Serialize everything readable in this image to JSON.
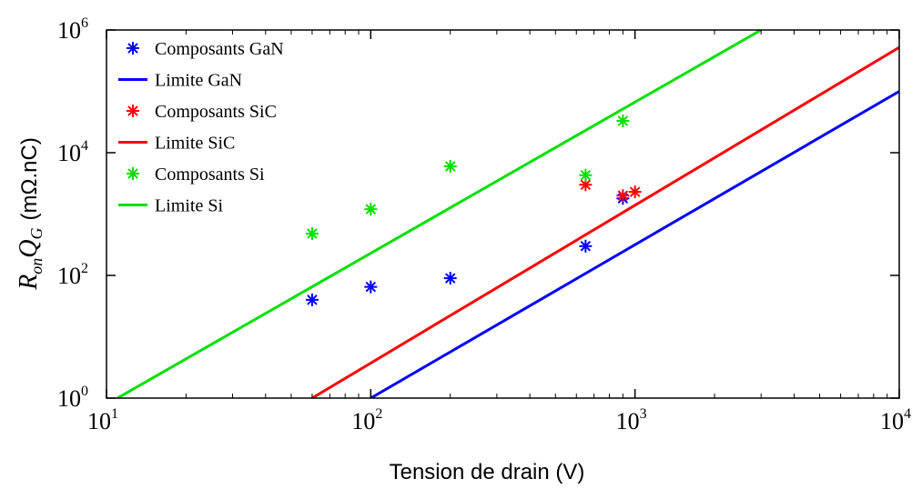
{
  "chart_data": {
    "type": "scatter",
    "title": "",
    "xlabel": "Tension de drain (V)",
    "ylabel": {
      "symbol_r": "R",
      "symbol_r_sub": "on",
      "symbol_q": "Q",
      "symbol_q_sub": "G",
      "unit": "(mΩ.nC)"
    },
    "x_scale": "log",
    "y_scale": "log",
    "xlim": [
      10,
      10000
    ],
    "ylim": [
      1,
      1000000
    ],
    "x_ticks": [
      {
        "value": 10,
        "base": "10",
        "exp": "1"
      },
      {
        "value": 100,
        "base": "10",
        "exp": "2"
      },
      {
        "value": 1000,
        "base": "10",
        "exp": "3"
      },
      {
        "value": 10000,
        "base": "10",
        "exp": "4"
      }
    ],
    "y_ticks": [
      {
        "value": 1,
        "base": "10",
        "exp": "0"
      },
      {
        "value": 100,
        "base": "10",
        "exp": "2"
      },
      {
        "value": 10000,
        "base": "10",
        "exp": "4"
      },
      {
        "value": 1000000,
        "base": "10",
        "exp": "6"
      }
    ],
    "grid": false,
    "legend_position": "top-left",
    "series": [
      {
        "name": "Composants GaN",
        "kind": "scatter",
        "color": "#0000ff",
        "points": [
          [
            60,
            40
          ],
          [
            100,
            65
          ],
          [
            200,
            90
          ],
          [
            650,
            300
          ],
          [
            900,
            1800
          ]
        ]
      },
      {
        "name": "Limite GaN",
        "kind": "line",
        "color": "#0000ff",
        "points": [
          [
            100,
            1
          ],
          [
            10000,
            100000
          ]
        ]
      },
      {
        "name": "Composants SiC",
        "kind": "scatter",
        "color": "#ff0000",
        "points": [
          [
            650,
            3000
          ],
          [
            900,
            2000
          ],
          [
            1000,
            2300
          ]
        ]
      },
      {
        "name": "Limite SiC",
        "kind": "line",
        "color": "#ff0000",
        "points": [
          [
            60,
            1
          ],
          [
            10000,
            520000
          ]
        ]
      },
      {
        "name": "Composants Si",
        "kind": "scatter",
        "color": "#00e000",
        "points": [
          [
            60,
            480
          ],
          [
            100,
            1200
          ],
          [
            200,
            6000
          ],
          [
            650,
            4300
          ],
          [
            900,
            33000
          ]
        ]
      },
      {
        "name": "Limite Si",
        "kind": "line",
        "color": "#00e000",
        "points": [
          [
            11,
            1
          ],
          [
            3000,
            1000000
          ]
        ]
      }
    ]
  }
}
